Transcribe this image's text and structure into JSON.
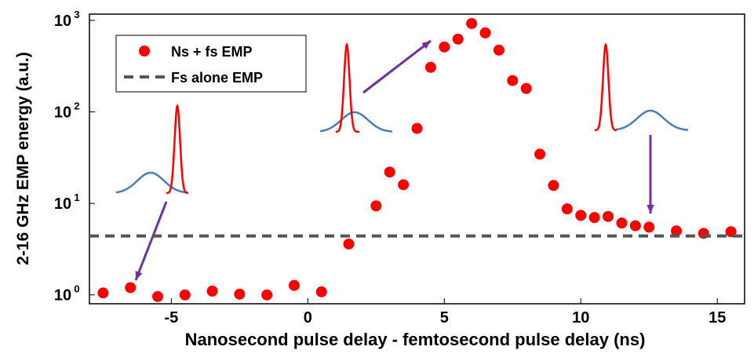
{
  "chart_data": {
    "type": "scatter",
    "xlabel": "Nanosecond pulse delay - femtosecond pulse delay (ns)",
    "ylabel": "2-16 GHz EMP energy (a.u.)",
    "xlim": [
      -8,
      16
    ],
    "ylim": [
      0.8,
      1170
    ],
    "log_y": true,
    "xticks": [
      -5,
      0,
      5,
      10,
      15
    ],
    "yticks": [
      {
        "value": 1,
        "label": "10",
        "exponent": "0"
      },
      {
        "value": 10,
        "label": "10",
        "exponent": "1"
      },
      {
        "value": 100,
        "label": "10",
        "exponent": "2"
      },
      {
        "value": 1000,
        "label": "10",
        "exponent": "3"
      }
    ],
    "legend": "upper left",
    "series": [
      {
        "name": "Ns + fs EMP",
        "color": "#ff0000",
        "style": "marker",
        "x": [
          -7.5,
          -6.5,
          -5.5,
          -4.5,
          -3.5,
          -2.5,
          -1.5,
          -0.5,
          0.5,
          1.5,
          2.5,
          3,
          3.5,
          4,
          4.5,
          5,
          5.5,
          6,
          6.5,
          7,
          7.5,
          8,
          8.5,
          9,
          9.5,
          10,
          10.5,
          11,
          11.5,
          12,
          12.5,
          13.5,
          14.5,
          15.5
        ],
        "values": [
          1.05,
          1.2,
          0.96,
          1.0,
          1.1,
          1.02,
          1.0,
          1.27,
          1.08,
          3.6,
          9.4,
          22,
          16,
          66,
          307,
          512,
          624,
          924,
          730,
          473,
          220,
          180,
          34.5,
          15.7,
          8.7,
          7.4,
          7.0,
          7.2,
          6.1,
          5.7,
          5.5,
          5.0,
          4.7,
          4.9
        ]
      },
      {
        "name": "Fs alone EMP",
        "color": "#555555",
        "style": "dashed",
        "x": [
          -8,
          16
        ],
        "values": [
          4.4,
          4.4
        ]
      }
    ]
  }
}
